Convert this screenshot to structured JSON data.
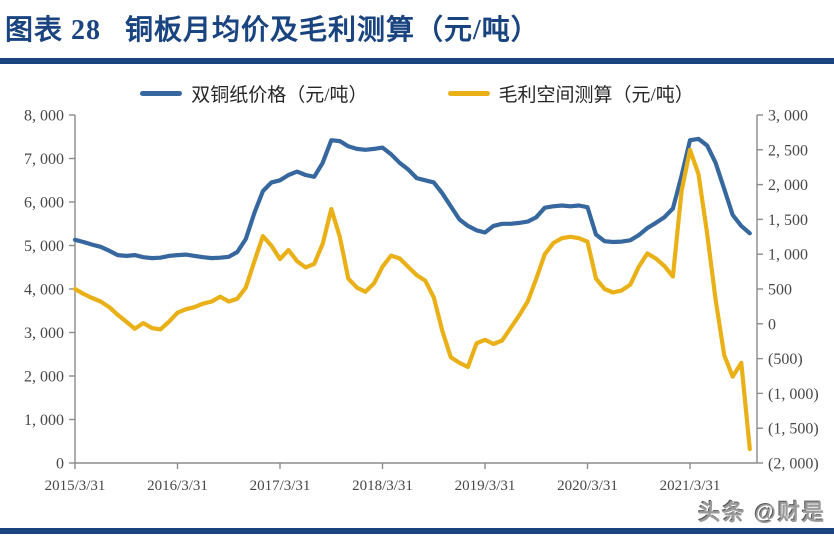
{
  "header": {
    "figure_label": "图表 28",
    "figure_title": "铜板月均价及毛利测算（元/吨）"
  },
  "watermark": "头条 @财是",
  "colors": {
    "accent_navy": "#1A4480",
    "price_line": "#36679E",
    "margin_line": "#EAB018",
    "axis_line": "#8C8C8C",
    "axis_text": "#474747"
  },
  "legend": [
    {
      "label": "双铜纸价格（元/吨）",
      "color": "#36679E"
    },
    {
      "label": "毛利空间测算（元/吨）",
      "color": "#EAB018"
    }
  ],
  "chart_data": {
    "type": "line",
    "title": "铜板月均价及毛利测算（元/吨）",
    "x_tick_labels": [
      "2015/3/31",
      "2016/3/31",
      "2017/3/31",
      "2018/3/31",
      "2019/3/31",
      "2020/3/31",
      "2021/3/31"
    ],
    "x_range_estimate": [
      "2015/3",
      "2021/10"
    ],
    "x_interval": "monthly",
    "grid": "off",
    "legend_position": "top-center",
    "y_left": {
      "min": 0,
      "max": 8000,
      "step": 1000,
      "tick_labels_top_to_bottom": [
        "8, 000",
        "7, 000",
        "6, 000",
        "5, 000",
        "4, 000",
        "3, 000",
        "2, 000",
        "1, 000",
        "0"
      ]
    },
    "y_right": {
      "min": -2000,
      "max": 3000,
      "step": 500,
      "tick_labels_top_to_bottom": [
        "3, 000",
        "2, 500",
        "2, 000",
        "1, 500",
        "1, 000",
        "500",
        "0",
        "(500)",
        "(1, 000)",
        "(1, 500)",
        "(2, 000)"
      ]
    },
    "series": [
      {
        "name": "双铜纸价格（元/吨）",
        "axis": "left",
        "color": "#36679E",
        "values": [
          5130,
          5080,
          5020,
          4970,
          4880,
          4780,
          4760,
          4780,
          4730,
          4710,
          4720,
          4760,
          4780,
          4790,
          4760,
          4730,
          4710,
          4720,
          4740,
          4850,
          5150,
          5750,
          6250,
          6450,
          6500,
          6620,
          6700,
          6620,
          6580,
          6900,
          7420,
          7400,
          7280,
          7220,
          7200,
          7220,
          7250,
          7100,
          6900,
          6750,
          6550,
          6500,
          6450,
          6200,
          5900,
          5600,
          5450,
          5350,
          5300,
          5450,
          5500,
          5500,
          5520,
          5550,
          5650,
          5870,
          5900,
          5920,
          5900,
          5920,
          5880,
          5250,
          5100,
          5080,
          5090,
          5120,
          5240,
          5400,
          5520,
          5650,
          5850,
          6600,
          7420,
          7450,
          7300,
          6900,
          6300,
          5700,
          5450,
          5280
        ]
      },
      {
        "name": "毛利空间测算（元/吨）",
        "axis": "right",
        "color": "#EAB018",
        "values": [
          500,
          430,
          370,
          320,
          240,
          130,
          30,
          -70,
          10,
          -60,
          -80,
          30,
          160,
          210,
          240,
          290,
          320,
          390,
          320,
          360,
          520,
          900,
          1260,
          1120,
          930,
          1060,
          900,
          810,
          860,
          1150,
          1650,
          1250,
          650,
          520,
          460,
          580,
          820,
          980,
          940,
          820,
          700,
          620,
          380,
          -100,
          -480,
          -560,
          -620,
          -280,
          -230,
          -290,
          -240,
          -60,
          120,
          320,
          650,
          1000,
          1160,
          1230,
          1250,
          1230,
          1180,
          650,
          500,
          450,
          480,
          560,
          820,
          1010,
          940,
          830,
          680,
          1900,
          2500,
          2150,
          1300,
          350,
          -450,
          -760,
          -560,
          -1800
        ]
      }
    ]
  }
}
